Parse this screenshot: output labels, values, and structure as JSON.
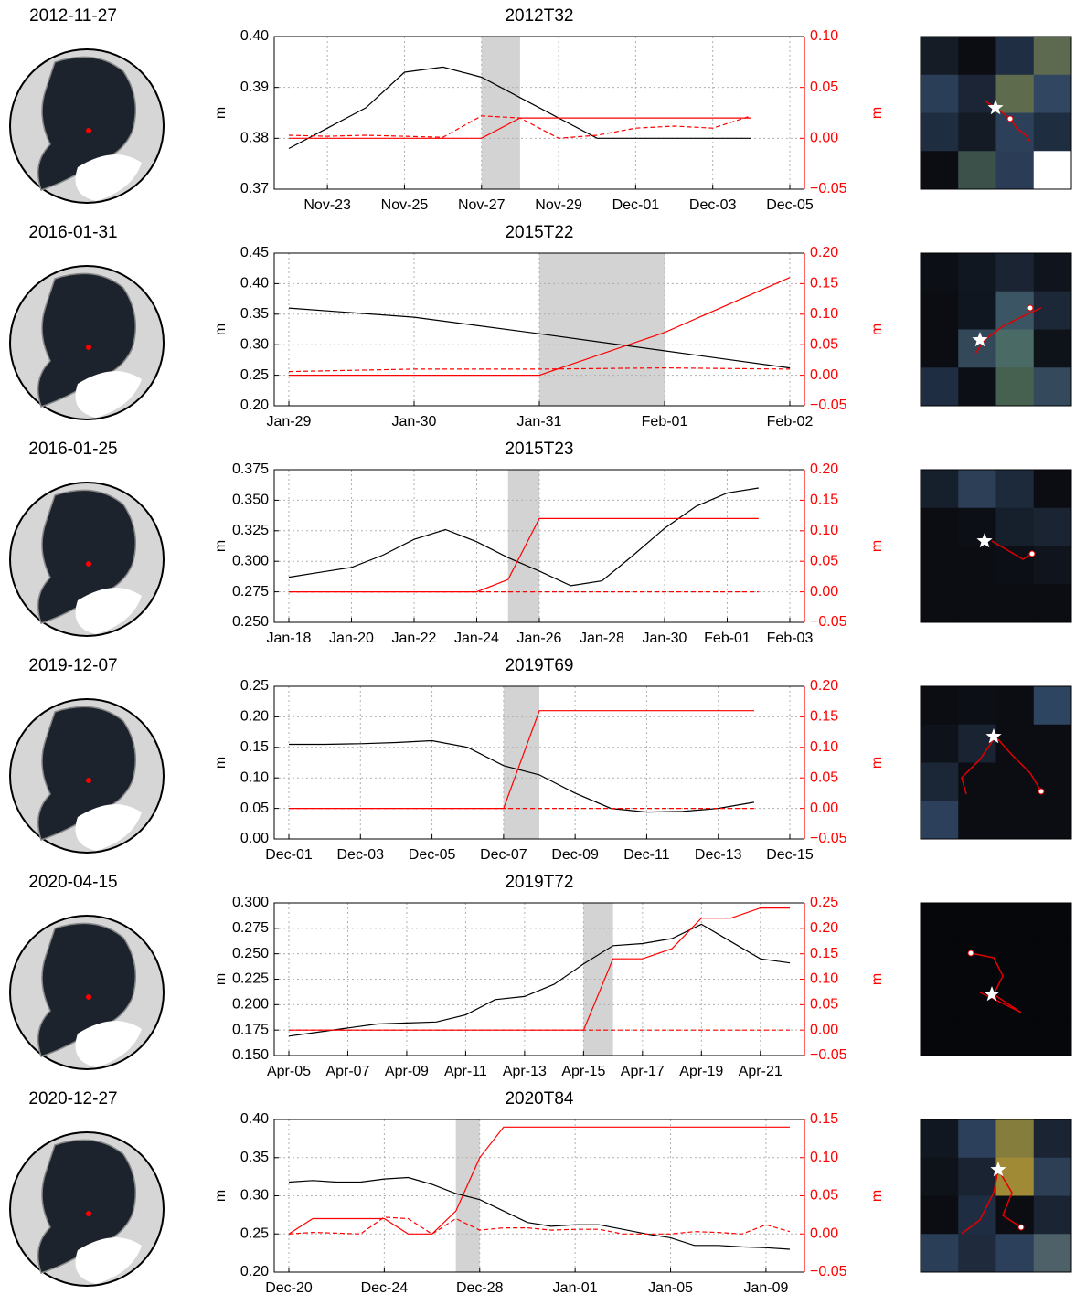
{
  "chart_data": [
    {
      "type": "line",
      "date": "2012-11-27",
      "title": "2012T32",
      "ylabel": "m",
      "y2label": "m",
      "grid": true,
      "x": [
        "Nov-22",
        "Nov-23",
        "Nov-24",
        "Nov-25",
        "Nov-26",
        "Nov-27",
        "Nov-28",
        "Nov-29",
        "Nov-30",
        "Dec-01",
        "Dec-02",
        "Dec-03",
        "Dec-04",
        "Dec-05"
      ],
      "xticks": [
        "Nov-23",
        "Nov-25",
        "Nov-27",
        "Nov-29",
        "Dec-01",
        "Dec-03",
        "Dec-05"
      ],
      "ylim": [
        0.37,
        0.4
      ],
      "yticks": [
        0.37,
        0.38,
        0.39,
        {
          "value": 0.4,
          "label": "0.40"
        }
      ],
      "y2lim": [
        -0.05,
        0.1
      ],
      "y2ticks": [
        {
          "value": -0.05,
          "label": "−0.05"
        },
        {
          "value": 0,
          "label": "0.00"
        },
        0.05,
        {
          "value": 0.1,
          "label": "0.10"
        }
      ],
      "shade": [
        "Nov-27",
        "Nov-28"
      ],
      "shade_color": "#d3d3d3",
      "series": [
        {
          "color": "#000000",
          "values": [
            0.378,
            0.382,
            0.386,
            0.393,
            0.394,
            0.392,
            0.388,
            0.384,
            0.38,
            0.38,
            0.38,
            0.38,
            0.38,
            null
          ]
        },
        {
          "color": "#ff0000",
          "axis": "y2",
          "values": [
            0,
            0,
            0,
            0,
            0,
            0,
            0.02,
            0.02,
            0.02,
            0.02,
            0.02,
            0.02,
            0.02,
            null
          ]
        },
        {
          "color": "#ff0000",
          "axis": "y2",
          "dash": true,
          "values": [
            0.003,
            0.002,
            0.003,
            0.002,
            0.001,
            0.022,
            0.02,
            0,
            0.003,
            0.01,
            0.012,
            0.01,
            0.022,
            null
          ]
        }
      ]
    },
    {
      "type": "line",
      "date": "2016-01-31",
      "title": "2015T22",
      "ylabel": "m",
      "y2label": "m",
      "grid": true,
      "x": [
        "Jan-29",
        "Jan-30",
        "Jan-31",
        "Feb-01",
        "Feb-02"
      ],
      "xticks": [
        "Jan-29",
        "Jan-30",
        "Jan-31",
        "Feb-01",
        "Feb-02"
      ],
      "ylim": [
        0.2,
        0.45
      ],
      "yticks": [
        {
          "value": 0.2,
          "label": "0.20"
        },
        0.25,
        {
          "value": 0.3,
          "label": "0.30"
        },
        0.35,
        {
          "value": 0.4,
          "label": "0.40"
        },
        0.45
      ],
      "y2lim": [
        -0.05,
        0.2
      ],
      "y2ticks": [
        {
          "value": -0.05,
          "label": "−0.05"
        },
        {
          "value": 0,
          "label": "0.00"
        },
        0.05,
        {
          "value": 0.1,
          "label": "0.10"
        },
        0.15,
        {
          "value": 0.2,
          "label": "0.20"
        }
      ],
      "shade": [
        "Jan-31",
        "Feb-01"
      ],
      "shade_color": "#d3d3d3",
      "series": [
        {
          "color": "#000000",
          "values": [
            0.36,
            0.345,
            0.318,
            0.29,
            0.262
          ]
        },
        {
          "color": "#ff0000",
          "axis": "y2",
          "values": [
            0,
            0,
            0,
            0.07,
            0.16
          ]
        },
        {
          "color": "#ff0000",
          "axis": "y2",
          "dash": true,
          "values": [
            0.006,
            0.01,
            0.01,
            0.012,
            0.01
          ]
        }
      ]
    },
    {
      "type": "line",
      "date": "2016-01-25",
      "title": "2015T23",
      "ylabel": "m",
      "y2label": "m",
      "grid": true,
      "x": [
        "Jan-18",
        "Jan-19",
        "Jan-20",
        "Jan-21",
        "Jan-22",
        "Jan-23",
        "Jan-24",
        "Jan-25",
        "Jan-26",
        "Jan-27",
        "Jan-28",
        "Jan-29",
        "Jan-30",
        "Jan-31",
        "Feb-01",
        "Feb-02",
        "Feb-03"
      ],
      "xticks": [
        "Jan-18",
        "Jan-20",
        "Jan-22",
        "Jan-24",
        "Jan-26",
        "Jan-28",
        "Jan-30",
        "Feb-01",
        "Feb-03"
      ],
      "ylim": [
        0.25,
        0.375
      ],
      "yticks": [
        {
          "value": 0.25,
          "label": "0.250"
        },
        0.275,
        {
          "value": 0.3,
          "label": "0.300"
        },
        0.325,
        {
          "value": 0.35,
          "label": "0.350"
        },
        0.375
      ],
      "y2lim": [
        -0.05,
        0.2
      ],
      "y2ticks": [
        {
          "value": -0.05,
          "label": "−0.05"
        },
        {
          "value": 0,
          "label": "0.00"
        },
        0.05,
        {
          "value": 0.1,
          "label": "0.10"
        },
        0.15,
        {
          "value": 0.2,
          "label": "0.20"
        }
      ],
      "shade": [
        "Jan-25",
        "Jan-26"
      ],
      "shade_color": "#d3d3d3",
      "series": [
        {
          "color": "#000000",
          "values": [
            0.287,
            0.291,
            0.295,
            0.305,
            0.318,
            0.326,
            0.316,
            0.303,
            0.292,
            0.28,
            0.284,
            0.305,
            0.327,
            0.345,
            0.356,
            0.36,
            null
          ]
        },
        {
          "color": "#ff0000",
          "axis": "y2",
          "values": [
            0,
            0,
            0,
            0,
            0,
            0,
            0,
            0.02,
            0.12,
            0.12,
            0.12,
            0.12,
            0.12,
            0.12,
            0.12,
            0.12,
            null
          ]
        },
        {
          "color": "#ff0000",
          "axis": "y2",
          "dash": true,
          "values": [
            0,
            0,
            0,
            0,
            0,
            0,
            0,
            0,
            0,
            0,
            0,
            0,
            0,
            0,
            0,
            0,
            null
          ]
        }
      ]
    },
    {
      "type": "line",
      "date": "2019-12-07",
      "title": "2019T69",
      "ylabel": "m",
      "y2label": "m",
      "grid": true,
      "x": [
        "Dec-01",
        "Dec-02",
        "Dec-03",
        "Dec-04",
        "Dec-05",
        "Dec-06",
        "Dec-07",
        "Dec-08",
        "Dec-09",
        "Dec-10",
        "Dec-11",
        "Dec-12",
        "Dec-13",
        "Dec-14",
        "Dec-15"
      ],
      "xticks": [
        "Dec-01",
        "Dec-03",
        "Dec-05",
        "Dec-07",
        "Dec-09",
        "Dec-11",
        "Dec-13",
        "Dec-15"
      ],
      "ylim": [
        0,
        0.25
      ],
      "yticks": [
        {
          "value": 0,
          "label": "0.00"
        },
        0.05,
        {
          "value": 0.1,
          "label": "0.10"
        },
        0.15,
        {
          "value": 0.2,
          "label": "0.20"
        },
        0.25
      ],
      "y2lim": [
        -0.05,
        0.2
      ],
      "y2ticks": [
        {
          "value": -0.05,
          "label": "−0.05"
        },
        {
          "value": 0,
          "label": "0.00"
        },
        0.05,
        {
          "value": 0.1,
          "label": "0.10"
        },
        0.15,
        {
          "value": 0.2,
          "label": "0.20"
        }
      ],
      "shade": [
        "Dec-07",
        "Dec-08"
      ],
      "shade_color": "#d3d3d3",
      "series": [
        {
          "color": "#000000",
          "values": [
            0.155,
            0.155,
            0.156,
            0.158,
            0.161,
            0.15,
            0.12,
            0.105,
            0.075,
            0.05,
            0.044,
            0.045,
            0.05,
            0.06,
            null
          ]
        },
        {
          "color": "#ff0000",
          "axis": "y2",
          "values": [
            0,
            0,
            0,
            0,
            0,
            0,
            0,
            0.16,
            0.16,
            0.16,
            0.16,
            0.16,
            0.16,
            0.16,
            null
          ]
        },
        {
          "color": "#ff0000",
          "axis": "y2",
          "dash": true,
          "values": [
            0,
            0,
            0,
            0,
            0,
            0,
            0,
            0,
            0,
            0,
            0,
            0,
            0,
            0,
            null
          ]
        }
      ]
    },
    {
      "type": "line",
      "date": "2020-04-15",
      "title": "2019T72",
      "ylabel": "m",
      "y2label": "m",
      "grid": true,
      "x": [
        "Apr-05",
        "Apr-06",
        "Apr-07",
        "Apr-08",
        "Apr-09",
        "Apr-10",
        "Apr-11",
        "Apr-12",
        "Apr-13",
        "Apr-14",
        "Apr-15",
        "Apr-16",
        "Apr-17",
        "Apr-18",
        "Apr-19",
        "Apr-20",
        "Apr-21",
        "Apr-22"
      ],
      "xticks": [
        "Apr-05",
        "Apr-07",
        "Apr-09",
        "Apr-11",
        "Apr-13",
        "Apr-15",
        "Apr-17",
        "Apr-19",
        "Apr-21"
      ],
      "ylim": [
        0.15,
        0.3
      ],
      "yticks": [
        {
          "value": 0.15,
          "label": "0.150"
        },
        0.175,
        {
          "value": 0.2,
          "label": "0.200"
        },
        0.225,
        {
          "value": 0.25,
          "label": "0.250"
        },
        0.275,
        {
          "value": 0.3,
          "label": "0.300"
        }
      ],
      "y2lim": [
        -0.05,
        0.25
      ],
      "y2ticks": [
        {
          "value": -0.05,
          "label": "−0.05"
        },
        {
          "value": 0,
          "label": "0.00"
        },
        0.05,
        {
          "value": 0.1,
          "label": "0.10"
        },
        0.15,
        {
          "value": 0.2,
          "label": "0.20"
        },
        0.25
      ],
      "shade": [
        "Apr-15",
        "Apr-16"
      ],
      "shade_color": "#d3d3d3",
      "series": [
        {
          "color": "#000000",
          "values": [
            0.169,
            0.173,
            0.177,
            0.181,
            0.182,
            0.183,
            0.19,
            0.205,
            0.208,
            0.22,
            0.24,
            0.258,
            0.26,
            0.265,
            0.279,
            0.262,
            0.245,
            0.241
          ]
        },
        {
          "color": "#ff0000",
          "axis": "y2",
          "values": [
            0,
            0,
            0,
            0,
            0,
            0,
            0,
            0,
            0,
            0,
            0,
            0.14,
            0.14,
            0.16,
            0.22,
            0.22,
            0.24,
            0.24
          ]
        },
        {
          "color": "#ff0000",
          "axis": "y2",
          "dash": true,
          "values": [
            0,
            0,
            0,
            0,
            0,
            0,
            0,
            0,
            0,
            0,
            0,
            0,
            0,
            0,
            0,
            0,
            0,
            0
          ]
        }
      ]
    },
    {
      "type": "line",
      "date": "2020-12-27",
      "title": "2020T84",
      "ylabel": "m",
      "y2label": "m",
      "grid": true,
      "x": [
        "Dec-20",
        "Dec-21",
        "Dec-22",
        "Dec-23",
        "Dec-24",
        "Dec-25",
        "Dec-26",
        "Dec-27",
        "Dec-28",
        "Dec-29",
        "Dec-30",
        "Dec-31",
        "Jan-01",
        "Jan-02",
        "Jan-03",
        "Jan-04",
        "Jan-05",
        "Jan-06",
        "Jan-07",
        "Jan-08",
        "Jan-09",
        "Jan-10"
      ],
      "xticks": [
        "Dec-20",
        "Dec-24",
        "Dec-28",
        "Jan-01",
        "Jan-05",
        "Jan-09"
      ],
      "ylim": [
        0.2,
        0.4
      ],
      "yticks": [
        {
          "value": 0.2,
          "label": "0.20"
        },
        0.25,
        {
          "value": 0.3,
          "label": "0.30"
        },
        0.35,
        {
          "value": 0.4,
          "label": "0.40"
        }
      ],
      "y2lim": [
        -0.05,
        0.15
      ],
      "y2ticks": [
        {
          "value": -0.05,
          "label": "−0.05"
        },
        {
          "value": 0,
          "label": "0.00"
        },
        0.05,
        {
          "value": 0.1,
          "label": "0.10"
        },
        0.15
      ],
      "shade": [
        "Dec-27",
        "Dec-28"
      ],
      "shade_color": "#d3d3d3",
      "series": [
        {
          "color": "#000000",
          "values": [
            0.318,
            0.32,
            0.318,
            0.318,
            0.322,
            0.324,
            0.315,
            0.303,
            0.295,
            0.28,
            0.265,
            0.26,
            0.262,
            0.262,
            0.256,
            0.25,
            0.245,
            0.235,
            0.235,
            0.233,
            0.232,
            0.23
          ]
        },
        {
          "color": "#ff0000",
          "axis": "y2",
          "values": [
            0,
            0.02,
            0.02,
            0.02,
            0.02,
            0,
            0,
            0.03,
            0.1,
            0.14,
            0.14,
            0.14,
            0.14,
            0.14,
            0.14,
            0.14,
            0.14,
            0.14,
            0.14,
            0.14,
            0.14,
            0.14
          ]
        },
        {
          "color": "#ff0000",
          "axis": "y2",
          "dash": true,
          "values": [
            0,
            0.002,
            0.001,
            0,
            0.022,
            0.02,
            0,
            0.02,
            0.005,
            0.008,
            0.008,
            0.005,
            0.006,
            0.006,
            0,
            0,
            0,
            0.003,
            0.002,
            0,
            0.012,
            0.003
          ]
        }
      ]
    }
  ]
}
